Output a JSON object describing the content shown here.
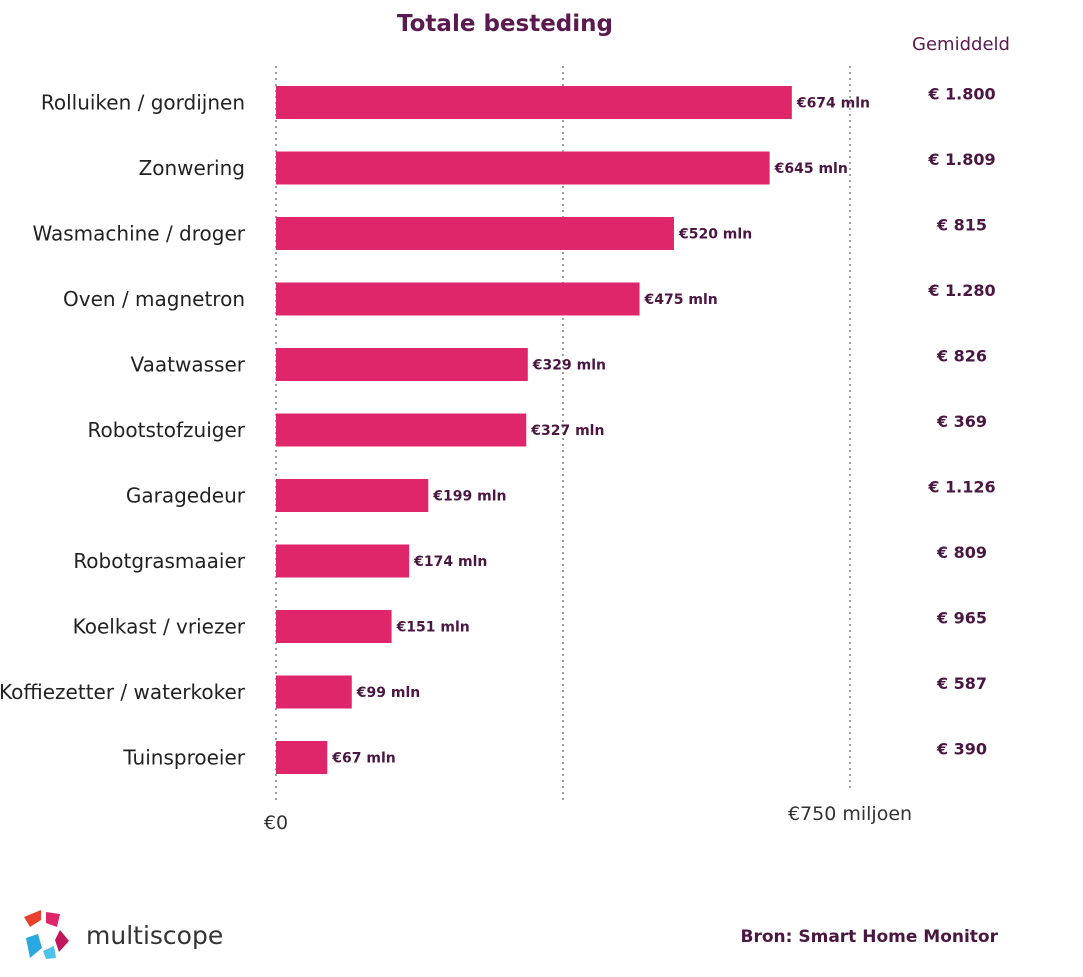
{
  "chart_data": {
    "type": "bar",
    "orientation": "horizontal",
    "title": "Totale besteding",
    "categories": [
      "Rolluiken / gordijnen",
      "Zonwering",
      "Wasmachine / droger",
      "Oven / magnetron",
      "Vaatwasser",
      "Robotstofzuiger",
      "Garagedeur",
      "Robotgrasmaaier",
      "Koelkast / vriezer",
      "Koffiezetter / waterkoker",
      "Tuinsproeier"
    ],
    "values": [
      674,
      645,
      520,
      475,
      329,
      327,
      199,
      174,
      151,
      99,
      67
    ],
    "value_labels": [
      "€674 mln",
      "€645 mln",
      "€520 mln",
      "€475 mln",
      "€329 mln",
      "€327 mln",
      "€199 mln",
      "€174 mln",
      "€151 mln",
      "€99 mln",
      "€67 mln"
    ],
    "xlim": [
      0,
      750
    ],
    "gridlines": [
      0,
      375,
      750
    ],
    "tick_labels": [
      "€0",
      "€750 miljoen"
    ],
    "bar_color": "#e0266a",
    "average": {
      "header": "Gemiddeld",
      "values": [
        "€ 1.800",
        "€ 1.809",
        "€ 815",
        "€ 1.280",
        "€ 826",
        "€ 369",
        "€ 1.126",
        "€ 809",
        "€ 965",
        "€ 587",
        "€ 390"
      ]
    }
  },
  "footer": {
    "brand": "multiscope",
    "source": "Bron: Smart Home Monitor"
  },
  "colors": {
    "accent": "#5b1a4f",
    "bar": "#e0266a"
  }
}
